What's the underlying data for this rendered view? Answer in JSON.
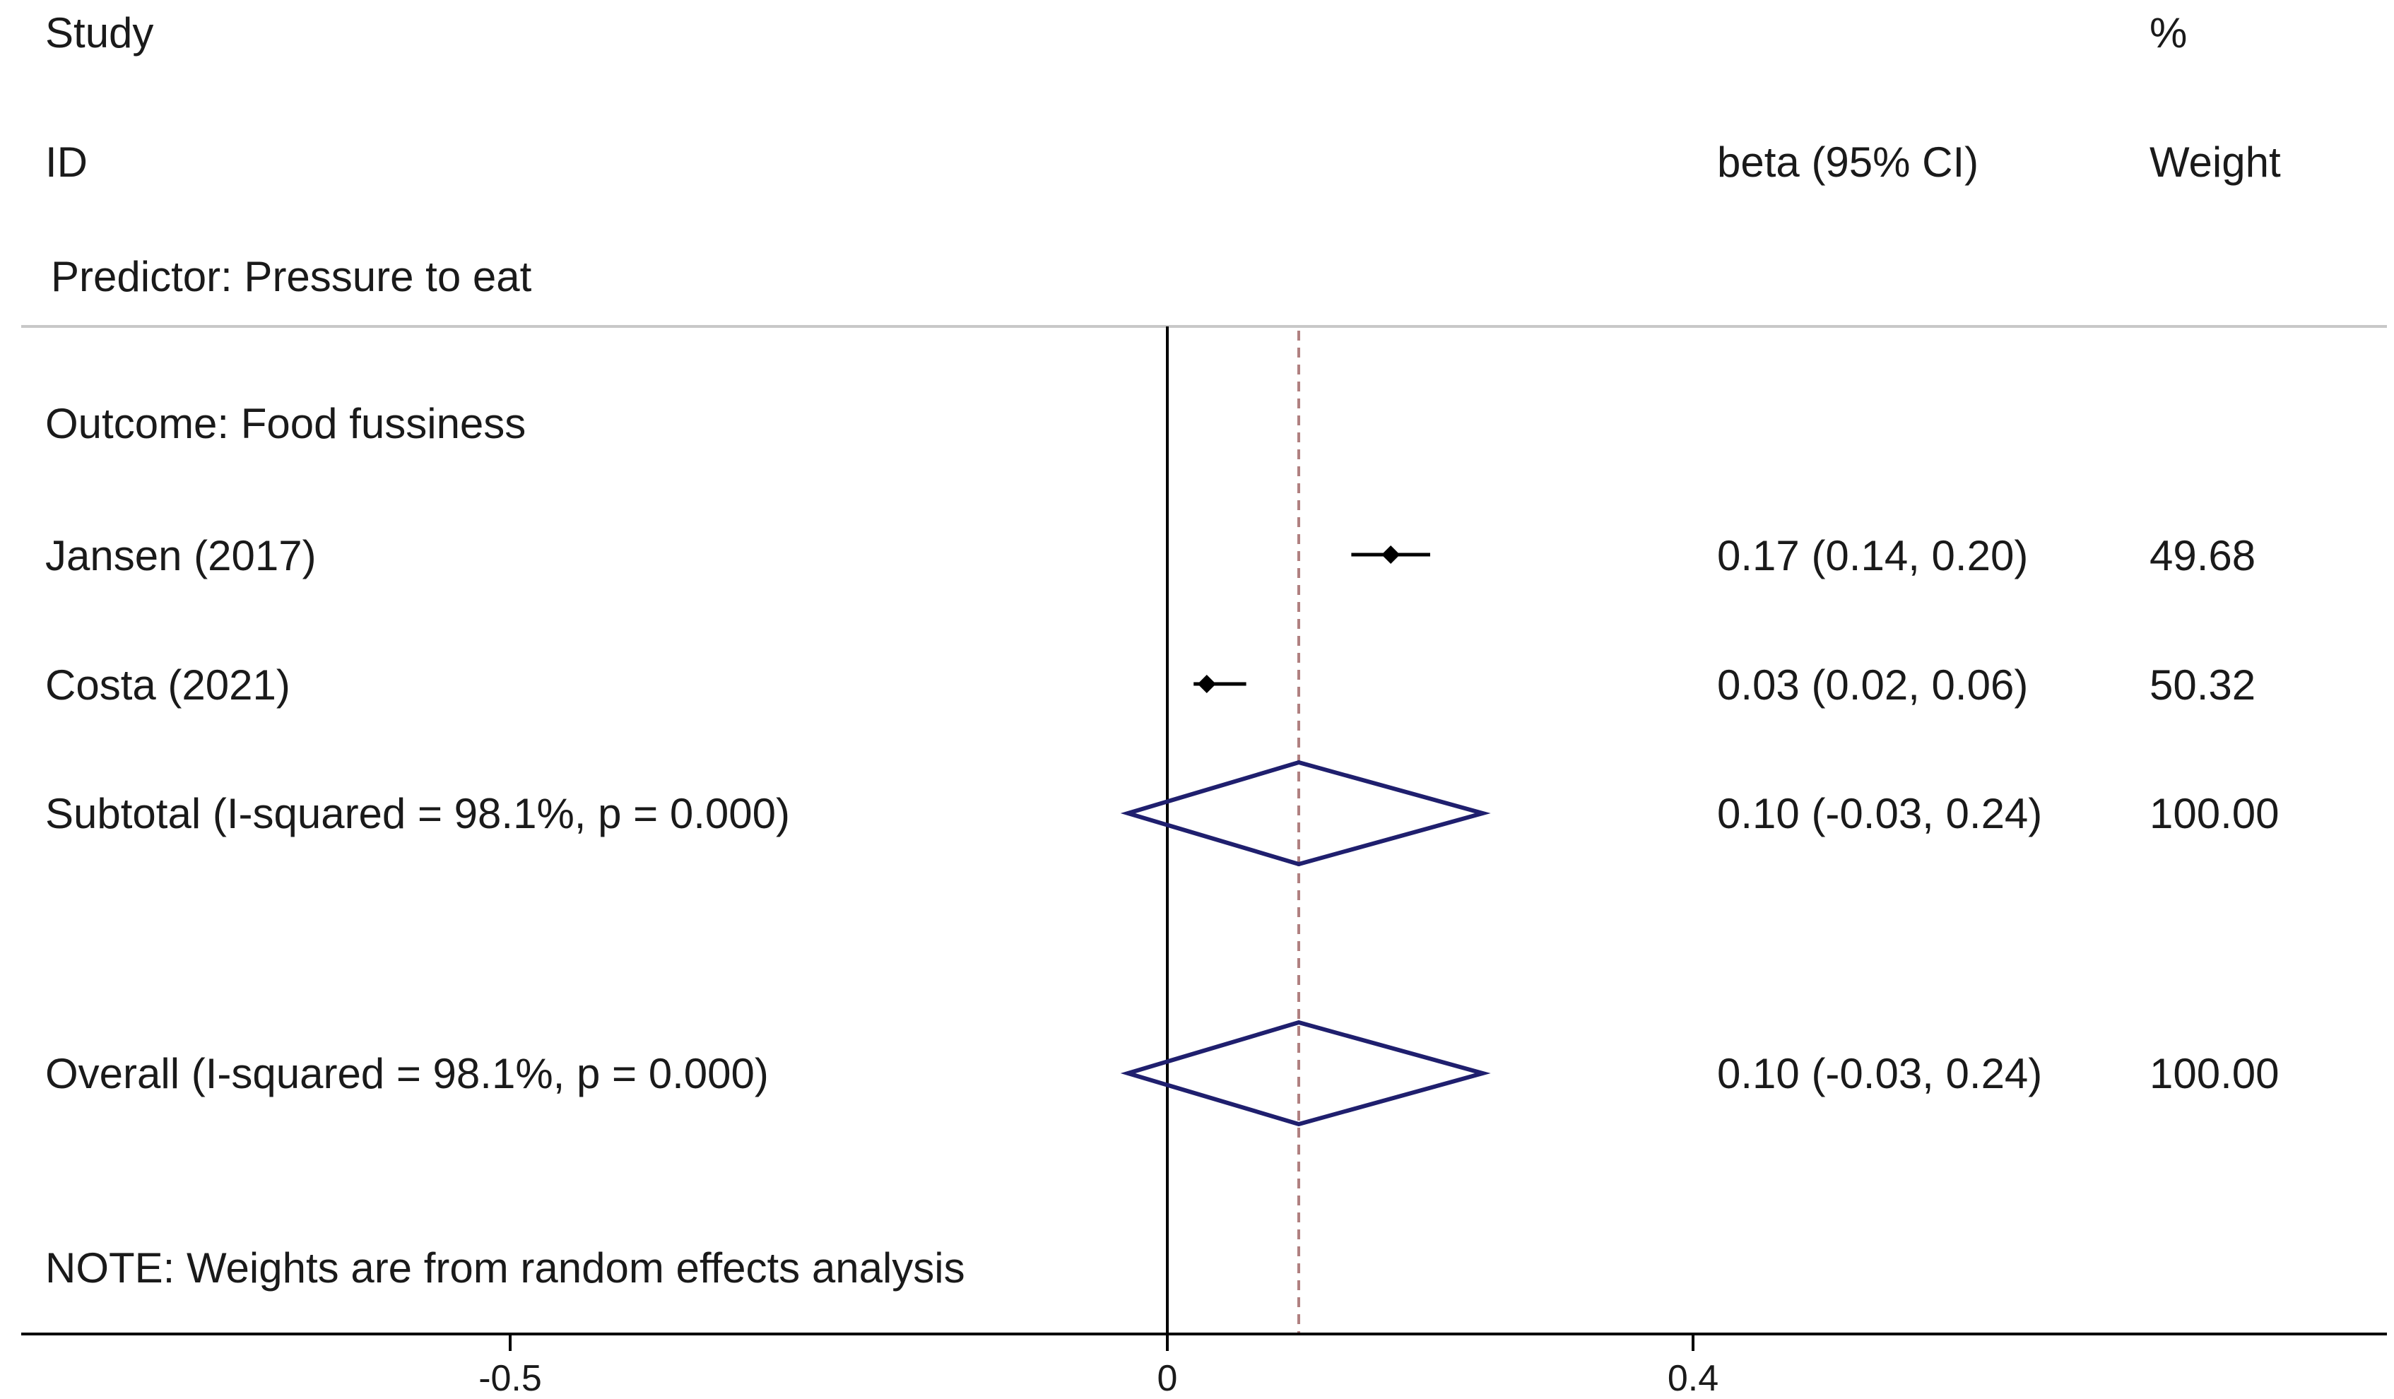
{
  "chart_data": {
    "type": "forest",
    "headers": {
      "study_line1": "Study",
      "study_line2": "ID",
      "effect": "beta (95% CI)",
      "weight_line1": "%",
      "weight_line2": "Weight"
    },
    "group_label": "Predictor: Pressure to eat",
    "subgroup_label": "Outcome: Food fussiness",
    "studies": [
      {
        "name": "Jansen (2017)",
        "beta": 0.17,
        "lower": 0.14,
        "upper": 0.2,
        "effect_text": "0.17 (0.14, 0.20)",
        "weight_text": "49.68"
      },
      {
        "name": "Costa (2021)",
        "beta": 0.03,
        "lower": 0.02,
        "upper": 0.06,
        "effect_text": "0.03 (0.02, 0.06)",
        "weight_text": "50.32"
      }
    ],
    "subtotal": {
      "label": "Subtotal  (I-squared = 98.1%, p = 0.000)",
      "beta": 0.1,
      "lower": -0.03,
      "upper": 0.24,
      "effect_text": "0.10 (-0.03, 0.24)",
      "weight_text": "100.00"
    },
    "overall": {
      "label": "Overall  (I-squared = 98.1%, p = 0.000)",
      "beta": 0.1,
      "lower": -0.03,
      "upper": 0.24,
      "effect_text": "0.10 (-0.03, 0.24)",
      "weight_text": "100.00"
    },
    "note": "NOTE: Weights are from random effects analysis",
    "x_ticks": [
      {
        "value": -0.5,
        "label": "-0.5"
      },
      {
        "value": 0,
        "label": "0"
      },
      {
        "value": 0.4,
        "label": "0.4"
      }
    ],
    "null_line": 0,
    "pooled_line": 0.1,
    "colors": {
      "text": "#1a1a1a",
      "diamond": "#1f1f6e",
      "pooled_line": "#b08080",
      "separator": "#c8c8c8",
      "axis": "#000000"
    }
  }
}
